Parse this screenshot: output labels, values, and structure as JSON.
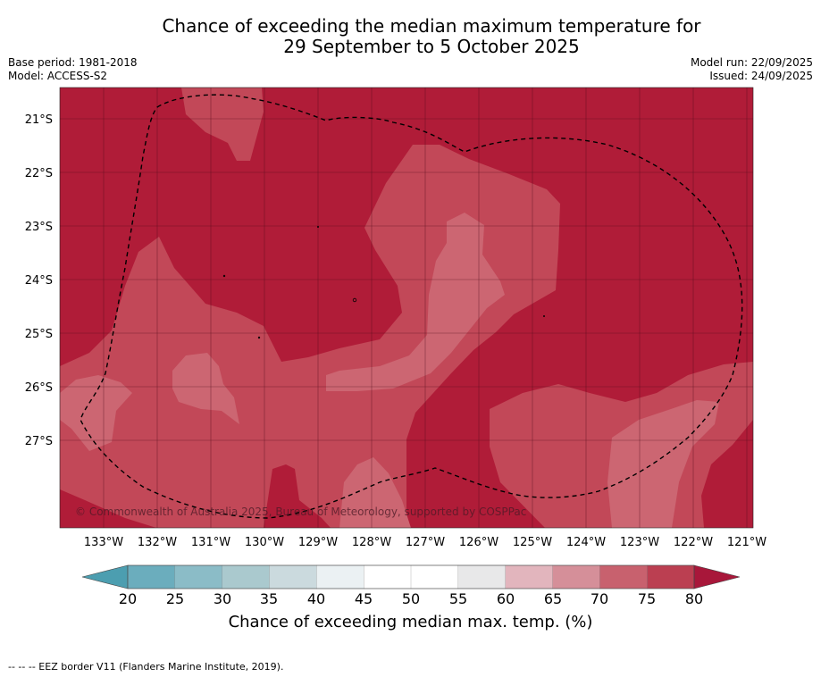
{
  "title": {
    "line1": "Chance of exceeding the median maximum temperature for",
    "line2": "29 September to 5 October 2025"
  },
  "meta": {
    "base_period": "Base period: 1981-2018",
    "model": "Model: ACCESS-S2",
    "model_run": "Model run: 22/09/2025",
    "issued": "Issued: 24/09/2025"
  },
  "map": {
    "lat_labels": [
      "21°S",
      "22°S",
      "23°S",
      "24°S",
      "25°S",
      "26°S",
      "27°S"
    ],
    "lon_labels": [
      "133°W",
      "132°W",
      "131°W",
      "130°W",
      "129°W",
      "128°W",
      "127°W",
      "126°W",
      "125°W",
      "124°W",
      "123°W",
      "122°W",
      "121°W"
    ],
    "copyright": "© Commonwealth of Australia 2025, Bureau of Meteorology, supported by COSPPac",
    "colors": {
      "c80": "#b01c38",
      "c75": "#c24858",
      "c70": "#cc6672",
      "background": "#b01c38"
    }
  },
  "colorbar": {
    "ticks": [
      "20",
      "25",
      "30",
      "35",
      "40",
      "45",
      "50",
      "55",
      "60",
      "65",
      "70",
      "75",
      "80"
    ],
    "colors": [
      "#6badbd",
      "#8bbcc7",
      "#aac9ce",
      "#cbdade",
      "#ebf1f3",
      "#ffffff",
      "#ffffff",
      "#e8e8e9",
      "#e2b5bd",
      "#d58f99",
      "#c8616e",
      "#bb3f51"
    ],
    "under_color": "#4c9eb0",
    "over_color": "#a8173a",
    "label": "Chance of exceeding median max. temp. (%)"
  },
  "footnote": "--  --  -- EEZ border V11 (Flanders Marine Institute, 2019)."
}
